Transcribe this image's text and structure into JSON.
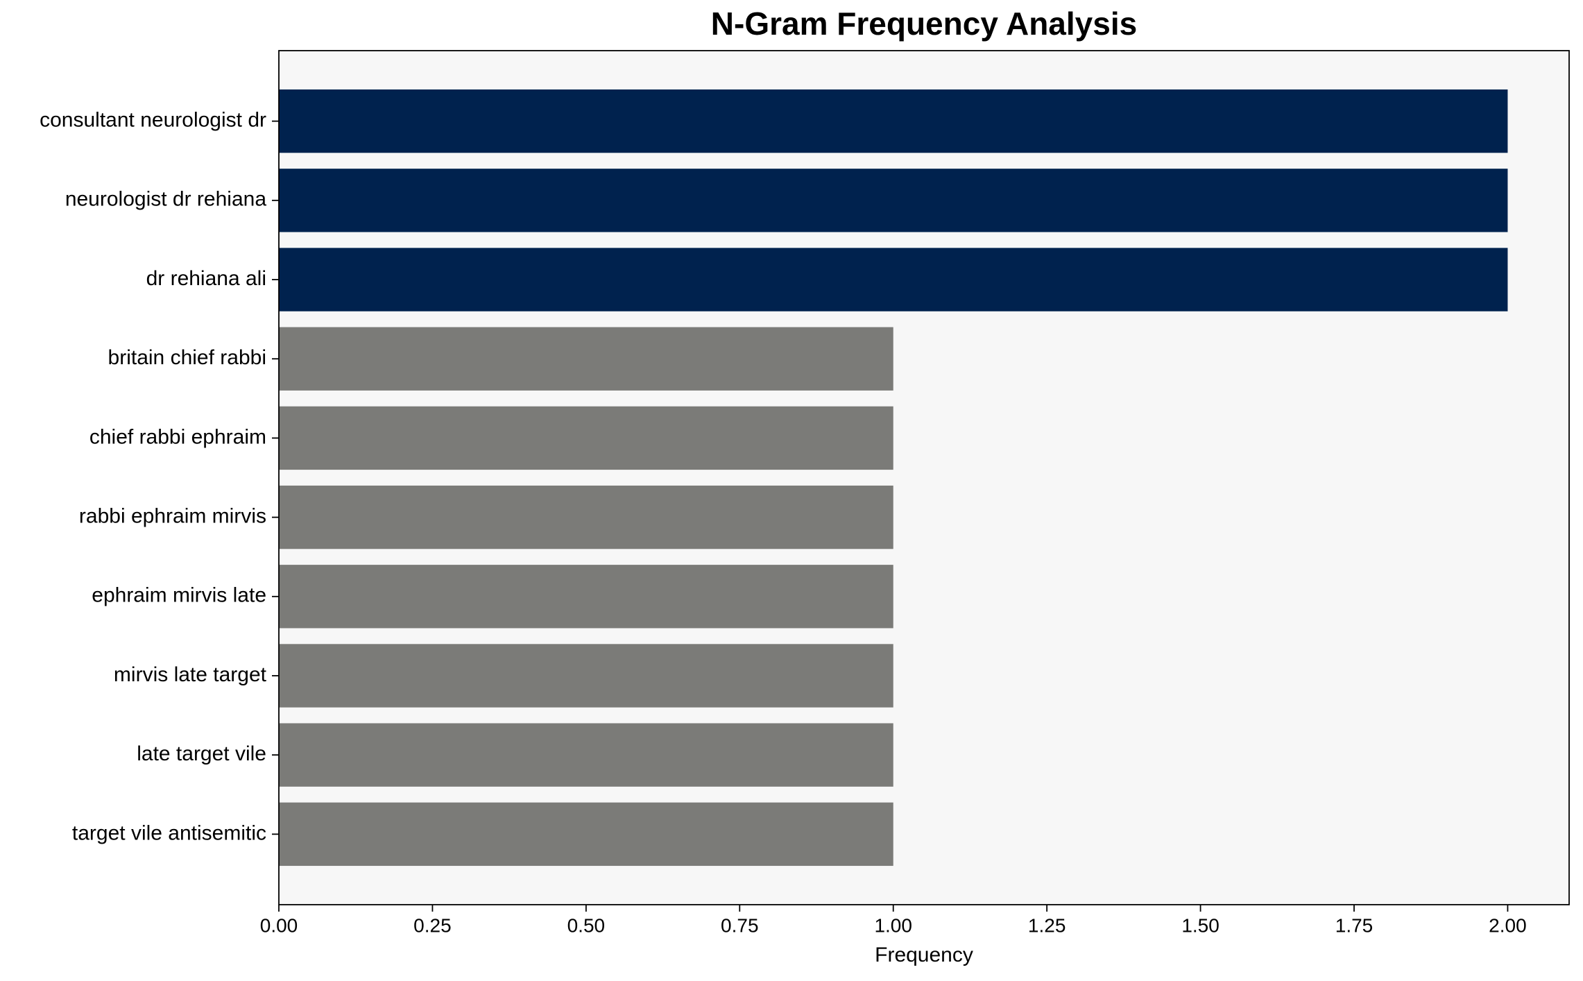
{
  "chart_data": {
    "type": "barh",
    "title": "N-Gram Frequency Analysis",
    "x_label": "Frequency",
    "categories": [
      "consultant neurologist dr",
      "neurologist dr rehiana",
      "dr rehiana ali",
      "britain chief rabbi",
      "chief rabbi ephraim",
      "rabbi ephraim mirvis",
      "ephraim mirvis late",
      "mirvis late target",
      "late target vile",
      "target vile antisemitic"
    ],
    "values": [
      2,
      2,
      2,
      1,
      1,
      1,
      1,
      1,
      1,
      1
    ],
    "colors": [
      "#00224e",
      "#00224e",
      "#00224e",
      "#7b7b78",
      "#7b7b78",
      "#7b7b78",
      "#7b7b78",
      "#7b7b78",
      "#7b7b78",
      "#7b7b78"
    ],
    "xlim": [
      0,
      2.1
    ],
    "xticks": [
      {
        "value": 0,
        "label": "0.00"
      },
      {
        "value": 0.25,
        "label": "0.25"
      },
      {
        "value": 0.5,
        "label": "0.50"
      },
      {
        "value": 0.75,
        "label": "0.75"
      },
      {
        "value": 1,
        "label": "1.00"
      },
      {
        "value": 1.25,
        "label": "1.25"
      },
      {
        "value": 1.5,
        "label": "1.50"
      },
      {
        "value": 1.75,
        "label": "1.75"
      },
      {
        "value": 2,
        "label": "2.00"
      }
    ],
    "background": "#f7f7f7"
  }
}
